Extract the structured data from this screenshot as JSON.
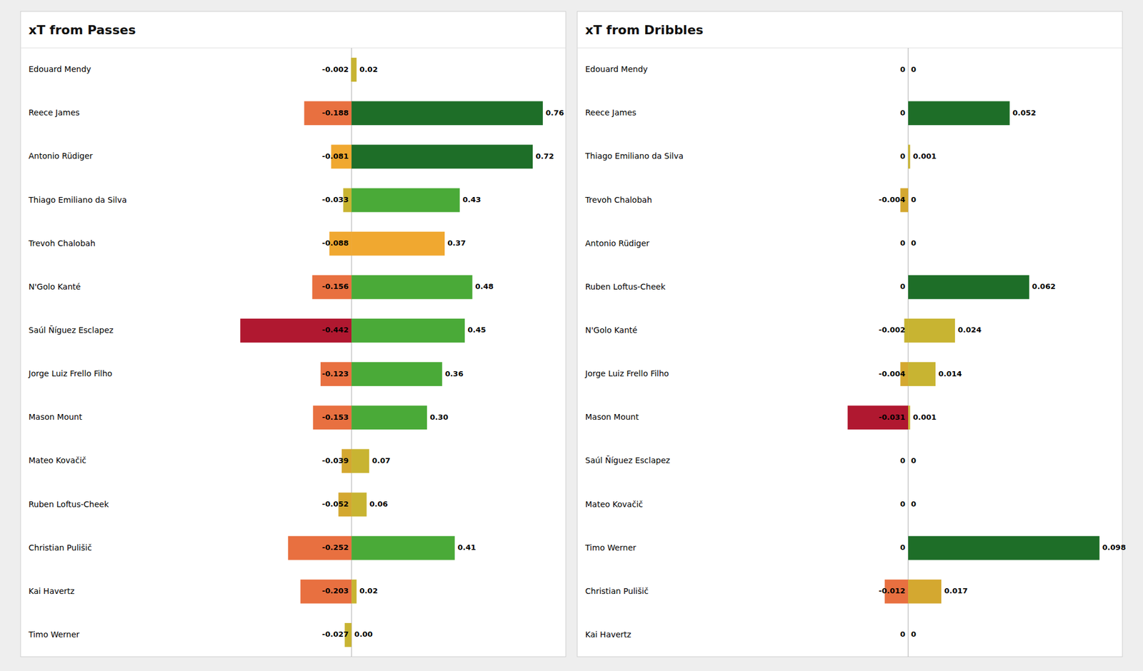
{
  "chart_data": [
    {
      "type": "bar",
      "orientation": "horizontal",
      "title": "xT from Passes",
      "categories": [
        "Edouard Mendy",
        "Reece James",
        "Antonio Rüdiger",
        "Thiago Emiliano da Silva",
        "Trevoh Chalobah",
        "N'Golo Kanté",
        "Saúl Ñíguez Esclapez",
        "Jorge Luiz Frello Filho",
        "Mason Mount",
        "Mateo Kovačič",
        "Ruben Loftus-Cheek",
        "Christian Pulišič",
        "Kai Havertz",
        "Timo Werner"
      ],
      "series": [
        {
          "values": [
            -0.002,
            -0.188,
            -0.081,
            -0.033,
            -0.088,
            -0.156,
            -0.442,
            -0.123,
            -0.153,
            -0.039,
            -0.052,
            -0.252,
            -0.203,
            -0.027
          ],
          "value_labels": [
            "-0.002",
            "-0.188",
            "-0.081",
            "-0.033",
            "-0.088",
            "-0.156",
            "-0.442",
            "-0.123",
            "-0.153",
            "-0.039",
            "-0.052",
            "-0.252",
            "-0.203",
            "-0.027"
          ],
          "colors": [
            "#c8b432",
            "#e87040",
            "#f0a830",
            "#c8b432",
            "#f0a830",
            "#e87040",
            "#b01830",
            "#e87040",
            "#e87040",
            "#d4a830",
            "#d4a830",
            "#e87040",
            "#e87040",
            "#c8b432"
          ]
        },
        {
          "values": [
            0.02,
            0.76,
            0.72,
            0.43,
            0.37,
            0.48,
            0.45,
            0.36,
            0.3,
            0.07,
            0.06,
            0.41,
            0.02,
            0.0
          ],
          "value_labels": [
            "0.02",
            "0.76",
            "0.72",
            "0.43",
            "0.37",
            "0.48",
            "0.45",
            "0.36",
            "0.30",
            "0.07",
            "0.06",
            "0.41",
            "0.02",
            "0.00"
          ],
          "colors": [
            "#c8b432",
            "#1e6e28",
            "#1e6e28",
            "#4aaa38",
            "#f0a830",
            "#4aaa38",
            "#4aaa38",
            "#4aaa38",
            "#4aaa38",
            "#c8b432",
            "#c8b432",
            "#4aaa38",
            "#c8b432",
            "#c8b432"
          ]
        }
      ],
      "xlim": [
        -1.3148,
        0.8512
      ],
      "xticks": [],
      "data_labels": true,
      "tick_labels": "y",
      "grid": false
    },
    {
      "type": "bar",
      "orientation": "horizontal",
      "title": "xT from Dribbles",
      "categories": [
        "Edouard Mendy",
        "Reece James",
        "Thiago Emiliano da Silva",
        "Trevoh Chalobah",
        "Antonio Rüdiger",
        "Ruben Loftus-Cheek",
        "N'Golo Kanté",
        "Jorge Luiz Frello Filho",
        "Mason Mount",
        "Saúl Ñíguez Esclapez",
        "Mateo Kovačič",
        "Timo Werner",
        "Christian Pulišič",
        "Kai Havertz"
      ],
      "series": [
        {
          "values": [
            0,
            0,
            0,
            -0.004,
            0,
            0,
            -0.002,
            -0.004,
            -0.031,
            0,
            0,
            0,
            -0.012,
            0
          ],
          "value_labels": [
            "0",
            "0",
            "0",
            "-0.004",
            "0",
            "0",
            "-0.002",
            "-0.004",
            "-0.031",
            "0",
            "0",
            "0",
            "-0.012",
            "0"
          ],
          "colors": [
            "#c8b432",
            "#c8b432",
            "#c8b432",
            "#d4a830",
            "#c8b432",
            "#c8b432",
            "#c8b432",
            "#d4a830",
            "#b01830",
            "#c8b432",
            "#c8b432",
            "#c8b432",
            "#e87040",
            "#c8b432"
          ]
        },
        {
          "values": [
            0,
            0.052,
            0.001,
            0,
            0,
            0.062,
            0.024,
            0.014,
            0.001,
            0,
            0,
            0.098,
            0.017,
            0
          ],
          "value_labels": [
            "0",
            "0.052",
            "0.001",
            "0",
            "0",
            "0.062",
            "0.024",
            "0.014",
            "0.001",
            "0",
            "0",
            "0.098",
            "0.017",
            "0"
          ],
          "colors": [
            "#c8b432",
            "#1e6e28",
            "#c8b432",
            "#c8b432",
            "#c8b432",
            "#1e6e28",
            "#c8b432",
            "#c8b432",
            "#c8b432",
            "#c8b432",
            "#c8b432",
            "#1e6e28",
            "#d4a830",
            "#c8b432"
          ]
        }
      ],
      "xlim": [
        -0.16954,
        0.10976
      ],
      "xticks": [],
      "data_labels": true,
      "tick_labels": "y",
      "grid": false
    }
  ]
}
